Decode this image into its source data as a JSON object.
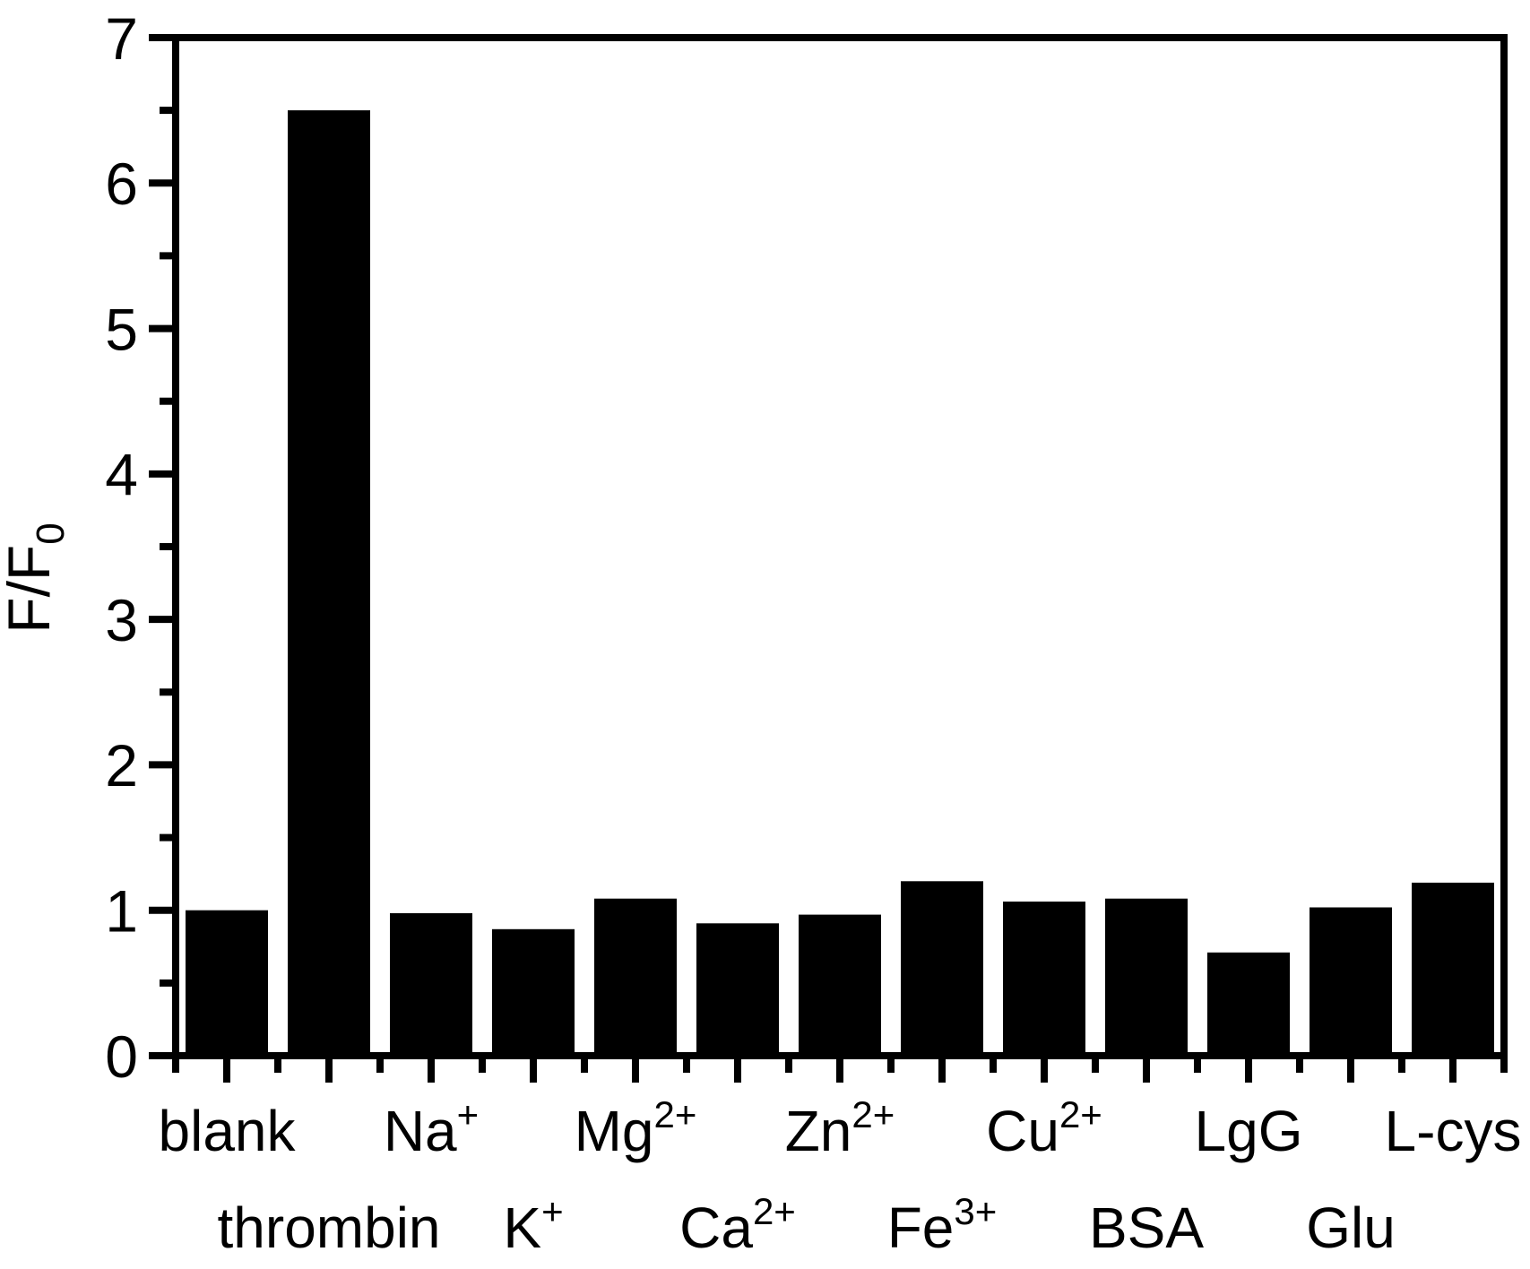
{
  "figure": {
    "background": "#ffffff",
    "bar_color": "#000000",
    "axis_color": "#000000",
    "text_color": "#000000"
  },
  "chart_data": {
    "type": "bar",
    "title": "",
    "xlabel": "",
    "ylabel": {
      "base": "F/F",
      "sub": "0"
    },
    "ylim": [
      0,
      7
    ],
    "yticks": [
      0,
      1,
      2,
      3,
      4,
      5,
      6,
      7
    ],
    "y_minor_step": 0.5,
    "grid": false,
    "legend": "none",
    "frame": true,
    "categories": [
      {
        "base": "blank",
        "sup": "",
        "row": 1
      },
      {
        "base": "thrombin",
        "sup": "",
        "row": 2
      },
      {
        "base": "Na",
        "sup": "+",
        "row": 1
      },
      {
        "base": "K",
        "sup": "+",
        "row": 2
      },
      {
        "base": "Mg",
        "sup": "2+",
        "row": 1
      },
      {
        "base": "Ca",
        "sup": "2+",
        "row": 2
      },
      {
        "base": "Zn",
        "sup": "2+",
        "row": 1
      },
      {
        "base": "Fe",
        "sup": "3+",
        "row": 2
      },
      {
        "base": "Cu",
        "sup": "2+",
        "row": 1
      },
      {
        "base": "BSA",
        "sup": "",
        "row": 2
      },
      {
        "base": "LgG",
        "sup": "",
        "row": 1
      },
      {
        "base": "Glu",
        "sup": "",
        "row": 2
      },
      {
        "base": "L-cys",
        "sup": "",
        "row": 1
      }
    ],
    "values": [
      1.0,
      6.5,
      0.98,
      0.87,
      1.08,
      0.91,
      0.97,
      1.2,
      1.06,
      1.08,
      0.71,
      1.02,
      1.19
    ]
  }
}
